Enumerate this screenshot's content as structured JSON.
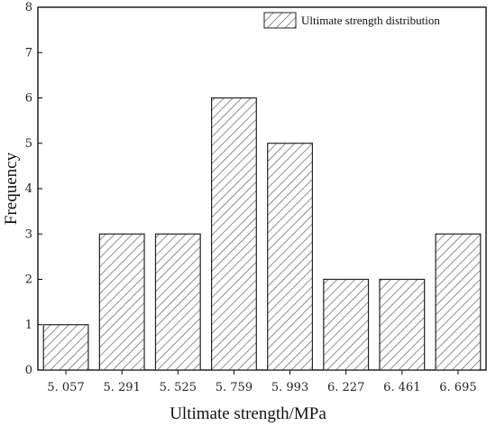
{
  "chart_data": {
    "type": "bar",
    "categories": [
      "5. 057",
      "5. 291",
      "5. 525",
      "5. 759",
      "5. 993",
      "6. 227",
      "6. 461",
      "6. 695"
    ],
    "series": [
      {
        "name": "Ultimate strength distribution",
        "values": [
          1,
          3,
          3,
          6,
          5,
          2,
          2,
          3
        ]
      }
    ],
    "xlabel": "Ultimate strength/MPa",
    "ylabel": "Frequency",
    "ylim": [
      0,
      8
    ],
    "yticks": [
      0,
      1,
      2,
      3,
      4,
      5,
      6,
      7,
      8
    ],
    "bar_fill": "hatched",
    "grid": false,
    "legend_position": "top-right"
  },
  "colors": {
    "bar_stroke": "#222222",
    "hatch": "#555555",
    "axis": "#000000",
    "background": "#ffffff"
  }
}
